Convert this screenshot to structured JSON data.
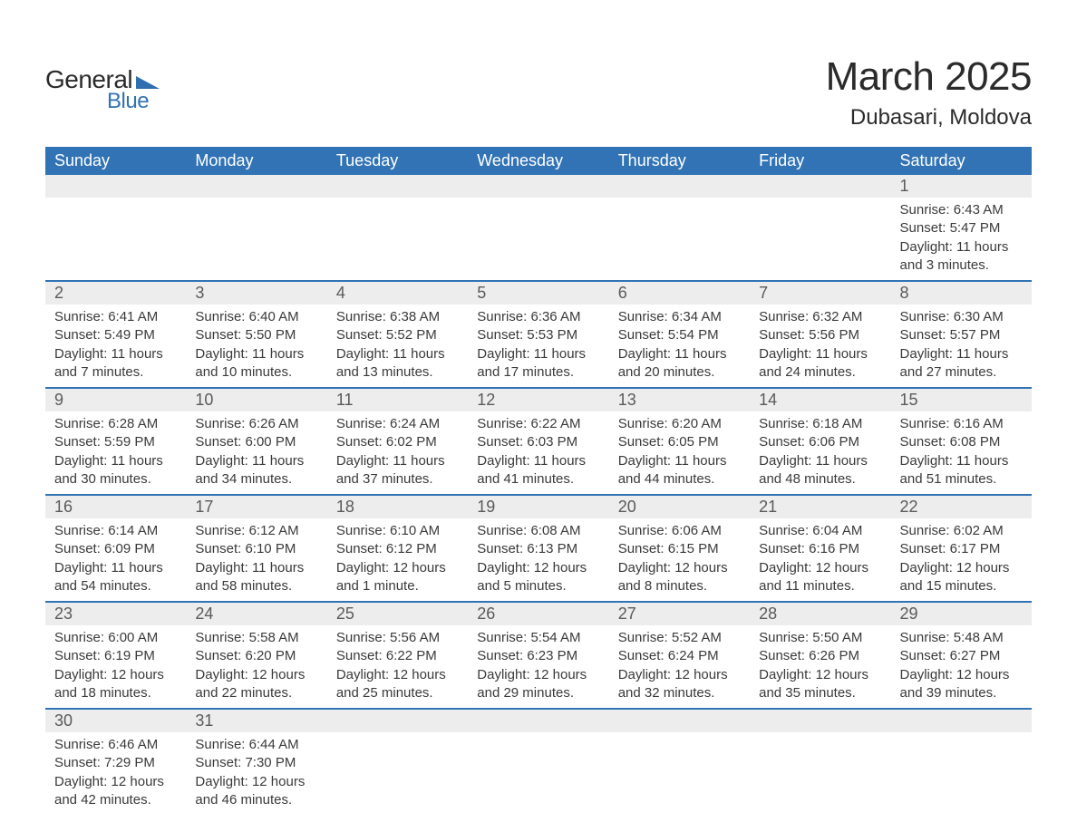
{
  "brand": {
    "text_general": "General",
    "text_blue": "Blue",
    "flag_color": "#2f6fb0",
    "text_color_dark": "#2b2b2b",
    "text_color_blue": "#3173b5"
  },
  "title": {
    "month": "March 2025",
    "location": "Dubasari, Moldova"
  },
  "colors": {
    "header_bg": "#3173b5",
    "header_text": "#ffffff",
    "daynum_bg": "#ededed",
    "daynum_text": "#5a5a5a",
    "row_divider": "#3173b5",
    "body_text": "#3a3a3a",
    "background": "#ffffff"
  },
  "layout": {
    "columns": 7,
    "column_headers": [
      "Sunday",
      "Monday",
      "Tuesday",
      "Wednesday",
      "Thursday",
      "Friday",
      "Saturday"
    ],
    "title_fontsize": 44,
    "location_fontsize": 24,
    "header_fontsize": 18,
    "daynum_fontsize": 18,
    "detail_fontsize": 15
  },
  "weeks": [
    [
      null,
      null,
      null,
      null,
      null,
      null,
      {
        "num": "1",
        "sunrise": "Sunrise: 6:43 AM",
        "sunset": "Sunset: 5:47 PM",
        "daylight": "Daylight: 11 hours and 3 minutes."
      }
    ],
    [
      {
        "num": "2",
        "sunrise": "Sunrise: 6:41 AM",
        "sunset": "Sunset: 5:49 PM",
        "daylight": "Daylight: 11 hours and 7 minutes."
      },
      {
        "num": "3",
        "sunrise": "Sunrise: 6:40 AM",
        "sunset": "Sunset: 5:50 PM",
        "daylight": "Daylight: 11 hours and 10 minutes."
      },
      {
        "num": "4",
        "sunrise": "Sunrise: 6:38 AM",
        "sunset": "Sunset: 5:52 PM",
        "daylight": "Daylight: 11 hours and 13 minutes."
      },
      {
        "num": "5",
        "sunrise": "Sunrise: 6:36 AM",
        "sunset": "Sunset: 5:53 PM",
        "daylight": "Daylight: 11 hours and 17 minutes."
      },
      {
        "num": "6",
        "sunrise": "Sunrise: 6:34 AM",
        "sunset": "Sunset: 5:54 PM",
        "daylight": "Daylight: 11 hours and 20 minutes."
      },
      {
        "num": "7",
        "sunrise": "Sunrise: 6:32 AM",
        "sunset": "Sunset: 5:56 PM",
        "daylight": "Daylight: 11 hours and 24 minutes."
      },
      {
        "num": "8",
        "sunrise": "Sunrise: 6:30 AM",
        "sunset": "Sunset: 5:57 PM",
        "daylight": "Daylight: 11 hours and 27 minutes."
      }
    ],
    [
      {
        "num": "9",
        "sunrise": "Sunrise: 6:28 AM",
        "sunset": "Sunset: 5:59 PM",
        "daylight": "Daylight: 11 hours and 30 minutes."
      },
      {
        "num": "10",
        "sunrise": "Sunrise: 6:26 AM",
        "sunset": "Sunset: 6:00 PM",
        "daylight": "Daylight: 11 hours and 34 minutes."
      },
      {
        "num": "11",
        "sunrise": "Sunrise: 6:24 AM",
        "sunset": "Sunset: 6:02 PM",
        "daylight": "Daylight: 11 hours and 37 minutes."
      },
      {
        "num": "12",
        "sunrise": "Sunrise: 6:22 AM",
        "sunset": "Sunset: 6:03 PM",
        "daylight": "Daylight: 11 hours and 41 minutes."
      },
      {
        "num": "13",
        "sunrise": "Sunrise: 6:20 AM",
        "sunset": "Sunset: 6:05 PM",
        "daylight": "Daylight: 11 hours and 44 minutes."
      },
      {
        "num": "14",
        "sunrise": "Sunrise: 6:18 AM",
        "sunset": "Sunset: 6:06 PM",
        "daylight": "Daylight: 11 hours and 48 minutes."
      },
      {
        "num": "15",
        "sunrise": "Sunrise: 6:16 AM",
        "sunset": "Sunset: 6:08 PM",
        "daylight": "Daylight: 11 hours and 51 minutes."
      }
    ],
    [
      {
        "num": "16",
        "sunrise": "Sunrise: 6:14 AM",
        "sunset": "Sunset: 6:09 PM",
        "daylight": "Daylight: 11 hours and 54 minutes."
      },
      {
        "num": "17",
        "sunrise": "Sunrise: 6:12 AM",
        "sunset": "Sunset: 6:10 PM",
        "daylight": "Daylight: 11 hours and 58 minutes."
      },
      {
        "num": "18",
        "sunrise": "Sunrise: 6:10 AM",
        "sunset": "Sunset: 6:12 PM",
        "daylight": "Daylight: 12 hours and 1 minute."
      },
      {
        "num": "19",
        "sunrise": "Sunrise: 6:08 AM",
        "sunset": "Sunset: 6:13 PM",
        "daylight": "Daylight: 12 hours and 5 minutes."
      },
      {
        "num": "20",
        "sunrise": "Sunrise: 6:06 AM",
        "sunset": "Sunset: 6:15 PM",
        "daylight": "Daylight: 12 hours and 8 minutes."
      },
      {
        "num": "21",
        "sunrise": "Sunrise: 6:04 AM",
        "sunset": "Sunset: 6:16 PM",
        "daylight": "Daylight: 12 hours and 11 minutes."
      },
      {
        "num": "22",
        "sunrise": "Sunrise: 6:02 AM",
        "sunset": "Sunset: 6:17 PM",
        "daylight": "Daylight: 12 hours and 15 minutes."
      }
    ],
    [
      {
        "num": "23",
        "sunrise": "Sunrise: 6:00 AM",
        "sunset": "Sunset: 6:19 PM",
        "daylight": "Daylight: 12 hours and 18 minutes."
      },
      {
        "num": "24",
        "sunrise": "Sunrise: 5:58 AM",
        "sunset": "Sunset: 6:20 PM",
        "daylight": "Daylight: 12 hours and 22 minutes."
      },
      {
        "num": "25",
        "sunrise": "Sunrise: 5:56 AM",
        "sunset": "Sunset: 6:22 PM",
        "daylight": "Daylight: 12 hours and 25 minutes."
      },
      {
        "num": "26",
        "sunrise": "Sunrise: 5:54 AM",
        "sunset": "Sunset: 6:23 PM",
        "daylight": "Daylight: 12 hours and 29 minutes."
      },
      {
        "num": "27",
        "sunrise": "Sunrise: 5:52 AM",
        "sunset": "Sunset: 6:24 PM",
        "daylight": "Daylight: 12 hours and 32 minutes."
      },
      {
        "num": "28",
        "sunrise": "Sunrise: 5:50 AM",
        "sunset": "Sunset: 6:26 PM",
        "daylight": "Daylight: 12 hours and 35 minutes."
      },
      {
        "num": "29",
        "sunrise": "Sunrise: 5:48 AM",
        "sunset": "Sunset: 6:27 PM",
        "daylight": "Daylight: 12 hours and 39 minutes."
      }
    ],
    [
      {
        "num": "30",
        "sunrise": "Sunrise: 6:46 AM",
        "sunset": "Sunset: 7:29 PM",
        "daylight": "Daylight: 12 hours and 42 minutes."
      },
      {
        "num": "31",
        "sunrise": "Sunrise: 6:44 AM",
        "sunset": "Sunset: 7:30 PM",
        "daylight": "Daylight: 12 hours and 46 minutes."
      },
      null,
      null,
      null,
      null,
      null
    ]
  ]
}
